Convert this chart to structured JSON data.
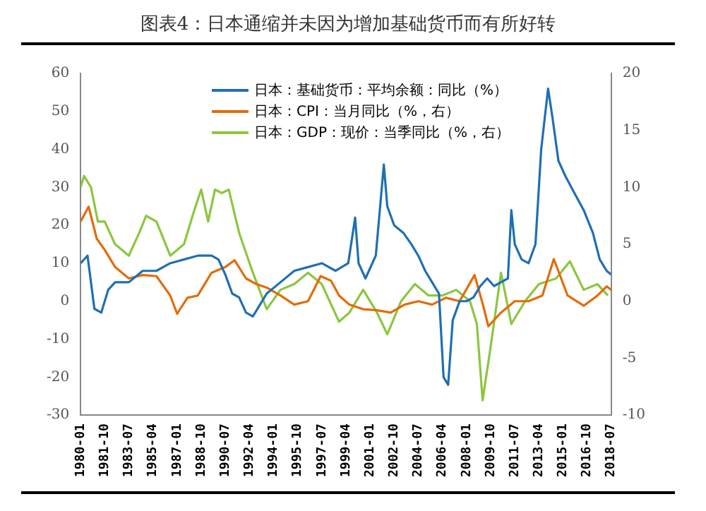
{
  "chart_data": {
    "type": "line",
    "title": "图表4：日本通缩并未因为增加基础货币而有所好转",
    "xlim": [
      "1980-01",
      "2018-07"
    ],
    "xticks": [
      "1980-01",
      "1981-10",
      "1983-07",
      "1985-04",
      "1987-01",
      "1988-10",
      "1990-07",
      "1992-04",
      "1994-01",
      "1995-10",
      "1997-07",
      "1999-04",
      "2001-01",
      "2002-10",
      "2004-07",
      "2006-04",
      "2008-01",
      "2009-10",
      "2011-07",
      "2013-04",
      "2015-01",
      "2016-10",
      "2018-07"
    ],
    "ylim": [
      -30,
      60
    ],
    "yticks": [
      -30,
      -20,
      -10,
      0,
      10,
      20,
      30,
      40,
      50,
      60
    ],
    "y2lim": [
      -10,
      20
    ],
    "y2ticks": [
      -10,
      -5,
      0,
      5,
      10,
      15,
      20
    ],
    "legend": "top",
    "grid": false,
    "marker": "none",
    "line_style": "solid",
    "series": [
      {
        "name": "日本：基础货币：平均余额：同比（%）",
        "color": "#1f6fb4",
        "x": [
          "1980-01",
          "1980-07",
          "1981-01",
          "1981-07",
          "1982-01",
          "1982-07",
          "1983-07",
          "1984-07",
          "1985-07",
          "1986-07",
          "1987-07",
          "1988-07",
          "1989-07",
          "1990-01",
          "1990-07",
          "1991-01",
          "1991-07",
          "1992-01",
          "1992-07",
          "1993-01",
          "1993-07",
          "1994-07",
          "1995-07",
          "1996-07",
          "1997-07",
          "1998-07",
          "1999-06",
          "1999-12",
          "2000-03",
          "2000-09",
          "2001-06",
          "2002-01",
          "2002-04",
          "2002-10",
          "2003-06",
          "2004-01",
          "2004-07",
          "2005-01",
          "2005-07",
          "2006-01",
          "2006-05",
          "2006-09",
          "2007-01",
          "2007-07",
          "2008-01",
          "2008-07",
          "2009-01",
          "2009-07",
          "2010-01",
          "2010-07",
          "2011-01",
          "2011-04",
          "2011-07",
          "2012-01",
          "2012-07",
          "2013-01",
          "2013-06",
          "2013-12",
          "2014-04",
          "2014-09",
          "2015-03",
          "2015-10",
          "2016-07",
          "2017-03",
          "2017-09",
          "2018-03",
          "2018-07"
        ],
        "values": [
          10,
          12,
          -2,
          -3,
          3,
          5,
          5,
          8,
          8,
          10,
          11,
          12,
          12,
          11,
          7,
          2,
          1,
          -3,
          -4,
          -1,
          2,
          5,
          8,
          9,
          10,
          8,
          10,
          22,
          10,
          6,
          12,
          36,
          25,
          20,
          18,
          15,
          12,
          8,
          5,
          2,
          -20,
          -22,
          -5,
          0,
          0,
          1,
          4,
          6,
          4,
          5,
          6,
          24,
          15,
          11,
          10,
          15,
          40,
          56,
          48,
          37,
          33,
          29,
          24,
          18,
          11,
          8,
          7
        ]
      },
      {
        "name": "日本：CPI：当月同比（%，右）",
        "color": "#e36c0a",
        "axis": "y2",
        "x": [
          "1980-01",
          "1980-08",
          "1981-03",
          "1981-10",
          "1982-07",
          "1983-07",
          "1984-07",
          "1985-07",
          "1986-07",
          "1987-01",
          "1987-10",
          "1988-07",
          "1989-07",
          "1990-07",
          "1991-03",
          "1992-01",
          "1992-10",
          "1993-07",
          "1994-07",
          "1995-07",
          "1996-07",
          "1997-06",
          "1998-03",
          "1998-10",
          "1999-07",
          "2000-07",
          "2001-07",
          "2002-07",
          "2003-07",
          "2004-07",
          "2005-07",
          "2006-07",
          "2007-07",
          "2008-08",
          "2009-03",
          "2009-08",
          "2010-07",
          "2011-07",
          "2012-07",
          "2013-07",
          "2014-05",
          "2015-05",
          "2016-07",
          "2017-07",
          "2018-03",
          "2018-07"
        ],
        "values": [
          7,
          8.3,
          5.5,
          4.5,
          3,
          2,
          2.3,
          2.2,
          0.5,
          -1.1,
          0.3,
          0.5,
          2.5,
          3,
          3.6,
          2,
          1.5,
          1.2,
          0.5,
          -0.3,
          0,
          2.2,
          1.8,
          0.5,
          -0.3,
          -0.7,
          -0.8,
          -1,
          -0.3,
          0,
          -0.3,
          0.3,
          0,
          2.3,
          -0.2,
          -2.2,
          -1,
          0,
          0,
          0.5,
          3.7,
          0.5,
          -0.4,
          0.5,
          1.3,
          1
        ]
      },
      {
        "name": "日本：GDP：现价：当季同比（%，右）",
        "color": "#8cc63f",
        "axis": "y2",
        "x": [
          "1980-01",
          "1980-04",
          "1980-10",
          "1981-04",
          "1981-10",
          "1982-07",
          "1983-07",
          "1984-04",
          "1984-10",
          "1985-07",
          "1986-07",
          "1987-07",
          "1988-04",
          "1988-10",
          "1989-04",
          "1989-10",
          "1990-04",
          "1990-10",
          "1991-07",
          "1992-07",
          "1993-07",
          "1994-07",
          "1995-07",
          "1996-07",
          "1997-07",
          "1998-10",
          "1999-07",
          "2000-07",
          "2001-07",
          "2002-04",
          "2003-04",
          "2004-04",
          "2005-04",
          "2006-04",
          "2007-04",
          "2008-04",
          "2008-10",
          "2009-03",
          "2009-10",
          "2010-07",
          "2011-04",
          "2012-04",
          "2013-04",
          "2014-07",
          "2015-07",
          "2016-07",
          "2017-07",
          "2018-04"
        ],
        "values": [
          10,
          11,
          10,
          7,
          7,
          5,
          4,
          6,
          7.5,
          7,
          4,
          5,
          8,
          9.8,
          7,
          9.8,
          9.5,
          9.8,
          6,
          2.5,
          -0.7,
          1,
          1.5,
          2.5,
          1.5,
          -1.8,
          -1,
          1,
          -1,
          -2.9,
          0,
          1.5,
          0.5,
          0.5,
          1,
          0,
          -2,
          -8.7,
          -4,
          2.5,
          -2,
          0,
          1.5,
          2,
          3.5,
          1,
          1.5,
          0.5
        ]
      }
    ]
  }
}
